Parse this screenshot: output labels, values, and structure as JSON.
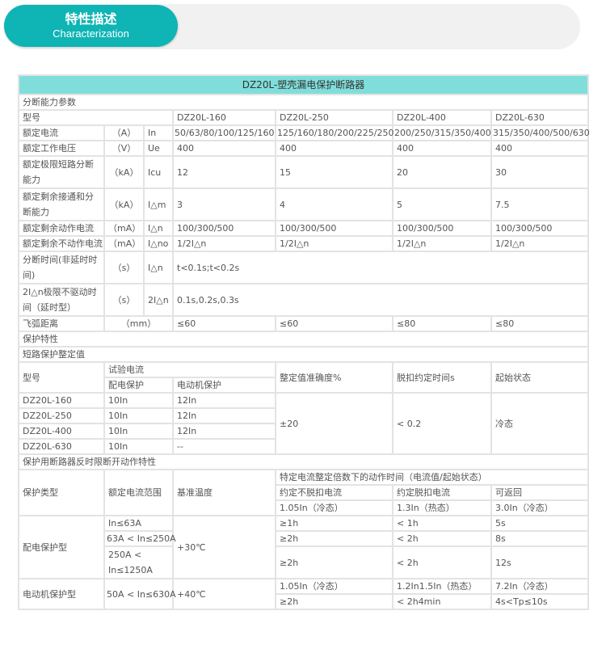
{
  "banner": {
    "title_zh": "特性描述",
    "title_en": "Characterization"
  },
  "table": {
    "title": "DZ20L-塑壳漏电保护断路器",
    "section1": "分断能力参数",
    "models_label": "型号",
    "models": [
      "DZ20L-160",
      "DZ20L-250",
      "DZ20L-400",
      "DZ20L-630"
    ],
    "params": [
      {
        "name": "额定电流",
        "unit": "（A）",
        "sym": "In",
        "values": [
          "50/63/80/100/125/160",
          "125/160/180/200/225/250",
          "200/250/315/350/400",
          "315/350/400/500/630"
        ]
      },
      {
        "name": "额定工作电压",
        "unit": "（V）",
        "sym": "Ue",
        "values": [
          "400",
          "400",
          "400",
          "400"
        ]
      },
      {
        "name": "额定极限短路分断能力",
        "unit": "（kA）",
        "sym": "Icu",
        "values": [
          "12",
          "15",
          "20",
          "30"
        ]
      },
      {
        "name": "额定剩余接通和分断能力",
        "unit": "（kA）",
        "sym": "I△m",
        "values": [
          "3",
          "4",
          "5",
          "7.5"
        ]
      },
      {
        "name": "额定剩余动作电流",
        "unit": "（mA）",
        "sym": "I△n",
        "values": [
          "100/300/500",
          "100/300/500",
          "100/300/500",
          "100/300/500"
        ]
      },
      {
        "name": "额定剩余不动作电流",
        "unit": "（mA）",
        "sym": "I△no",
        "values": [
          "1/2I△n",
          "1/2I△n",
          "1/2I△n",
          "1/2I△n"
        ]
      },
      {
        "name": "分断时间(非延时时间)",
        "unit": "（s）",
        "sym": "I△n",
        "value": "t<0.1s;t<0.2s"
      },
      {
        "name": "2I△n极限不驱动时间（延时型）",
        "unit": "（s）",
        "sym": "2I△n",
        "value": "0.1s,0.2s,0.3s"
      },
      {
        "name": "飞弧距离",
        "unit": "（mm）",
        "values": [
          "≤60",
          "≤60",
          "≤80",
          "≤80"
        ]
      }
    ],
    "section2": "保护特性",
    "section2_sub": "短路保护整定值",
    "sc_headers": {
      "model": "型号",
      "test_current": "试验电流",
      "distribution": "配电保护",
      "motor": "电动机保护",
      "accuracy": "整定值准确度%",
      "trip_time": "脱扣约定时间s",
      "initial_state": "起始状态"
    },
    "sc_rows": [
      {
        "model": "DZ20L-160",
        "dist": "10In",
        "motor": "12In"
      },
      {
        "model": "DZ20L-250",
        "dist": "10In",
        "motor": "12In"
      },
      {
        "model": "DZ20L-400",
        "dist": "10In",
        "motor": "12In"
      },
      {
        "model": "DZ20L-630",
        "dist": "10In",
        "motor": "--"
      }
    ],
    "sc_accuracy": "±20",
    "sc_trip": "< 0.2",
    "sc_state": "冷态",
    "section3": "保护用断路器反时限断开动作特性",
    "it_headers": {
      "type": "保护类型",
      "range": "额定电流范围",
      "temp": "基准温度",
      "action": "特定电流整定倍数下的动作时间（电流值/起始状态）",
      "non_trip": "约定不脱扣电流",
      "trip": "约定脱扣电流",
      "return": "可返回",
      "non_trip_val": "1.05In（冷态）",
      "trip_val": "1.3In（热态）",
      "return_val": "3.0In（冷态）"
    },
    "dist_type": "配电保护型",
    "dist_temp": "+30℃",
    "dist_rows": [
      {
        "range": "In≤63A",
        "a": "≥1h",
        "b": "< 1h",
        "c": "5s"
      },
      {
        "range": "63A < In≤250A",
        "a": "≥2h",
        "b": "< 2h",
        "c": "8s"
      },
      {
        "range": "250A < In≤1250A",
        "a": "≥2h",
        "b": "< 2h",
        "c": "12s"
      }
    ],
    "motor_type": "电动机保护型",
    "motor_range": "50A < In≤630A",
    "motor_temp": "+40℃",
    "motor_rows": [
      {
        "a": "1.05In（冷态）",
        "b": "1.2In1.5In（热态）",
        "c": "7.2In（冷态）"
      },
      {
        "a": "≥2h",
        "b": "< 2h4min",
        "c": "4s<Tp≤10s"
      }
    ]
  }
}
